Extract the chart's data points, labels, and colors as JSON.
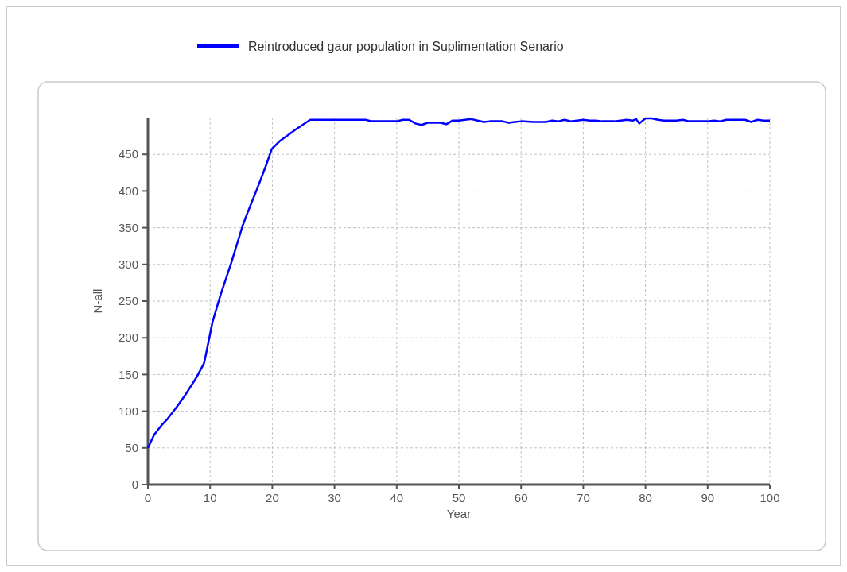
{
  "chart_data": {
    "type": "line",
    "xlabel": "Year",
    "ylabel": "N-all",
    "xlim": [
      0,
      100
    ],
    "ylim": [
      0,
      500
    ],
    "xticks": [
      0,
      10,
      20,
      30,
      40,
      50,
      60,
      70,
      80,
      90,
      100
    ],
    "yticks": [
      0,
      50,
      100,
      150,
      200,
      250,
      300,
      350,
      400,
      450
    ],
    "grid": true,
    "legend": "top",
    "marker": "none",
    "line_style": "solid",
    "series": [
      {
        "name": "Reintroduced gaur population in Suplimentation Senario",
        "color": "#0000ff",
        "x": [
          0,
          1,
          2.2,
          3,
          4.4,
          6,
          7.8,
          9,
          9.2,
          10.4,
          11.7,
          13.4,
          15.2,
          16,
          17.7,
          19,
          19.9,
          21.2,
          22.5,
          23.8,
          26.1,
          30,
          35,
          36,
          40,
          41,
          42,
          43,
          44,
          45,
          46,
          47,
          48,
          49,
          50,
          51,
          52,
          53,
          54,
          55,
          56,
          57,
          58,
          59,
          60,
          62,
          64,
          65,
          66,
          67,
          68,
          69,
          70,
          71,
          72,
          73,
          75,
          76,
          77,
          78,
          78.5,
          79,
          80,
          81,
          82,
          83,
          85,
          86,
          87,
          88,
          90,
          91,
          92,
          93,
          94,
          95,
          96,
          97,
          98,
          99,
          100
        ],
        "values": [
          50,
          68,
          81,
          88,
          103,
          122,
          146,
          165,
          172,
          222,
          259,
          302,
          352,
          370,
          406,
          435,
          457,
          468,
          476,
          484,
          497,
          497,
          497,
          495,
          495,
          497,
          497,
          492,
          490,
          493,
          493,
          493,
          491,
          496,
          496,
          497,
          498,
          496,
          494,
          495,
          495,
          495,
          493,
          494,
          495,
          494,
          494,
          496,
          495,
          497,
          495,
          496,
          497,
          496,
          496,
          495,
          495,
          496,
          497,
          496,
          498,
          492,
          499,
          499,
          497,
          496,
          496,
          497,
          495,
          495,
          495,
          496,
          495,
          497,
          497,
          497,
          497,
          494,
          497,
          496,
          496
        ]
      }
    ]
  }
}
